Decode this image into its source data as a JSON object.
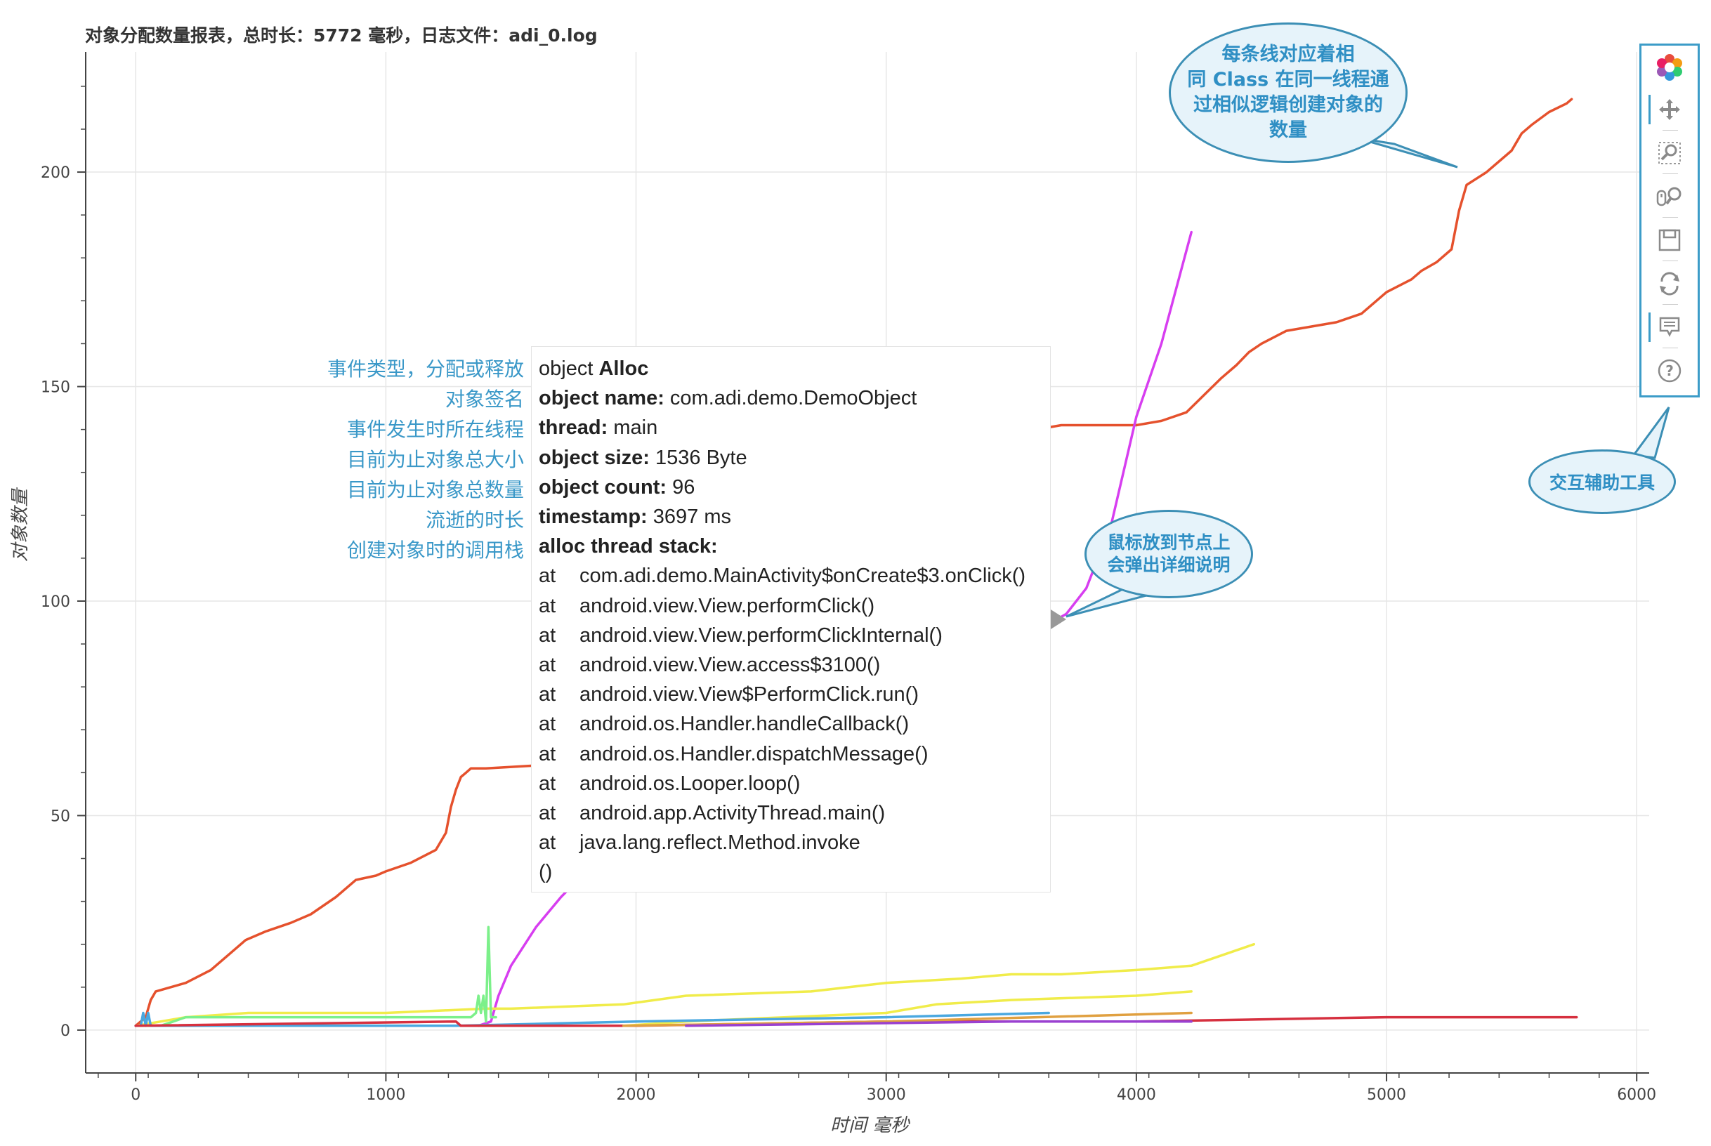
{
  "page": {
    "title": "对象分配数量报表，总时长：5772 毫秒，日志文件：adi_0.log"
  },
  "chart_data": {
    "type": "line",
    "title": "对象分配数量报表，总时长：5772 毫秒，日志文件：adi_0.log",
    "xlabel": "时间 毫秒",
    "ylabel": "对象数量",
    "xlim": [
      -200,
      6050
    ],
    "ylim": [
      -10,
      228
    ],
    "x_ticks": [
      0,
      1000,
      2000,
      3000,
      4000,
      5000,
      6000
    ],
    "y_ticks": [
      0,
      50,
      100,
      150,
      200
    ],
    "grid": true,
    "series": [
      {
        "color": "#e5512d",
        "x": [
          0,
          40,
          50,
          60,
          80,
          200,
          300,
          380,
          440,
          520,
          620,
          700,
          800,
          880,
          960,
          1000,
          1100,
          1200,
          1240,
          1260,
          1280,
          1300,
          1320,
          1340,
          1360,
          1380,
          1400,
          1700,
          2100,
          2500,
          2900,
          3200,
          3400,
          3500,
          3560,
          3600,
          3700,
          4000,
          4100,
          4200,
          4270,
          4340,
          4400,
          4450,
          4500,
          4600,
          4700,
          4800,
          4900,
          5000,
          5100,
          5140,
          5200,
          5260,
          5290,
          5320,
          5400,
          5500,
          5540,
          5580,
          5650,
          5720,
          5740
        ],
        "y": [
          1,
          3,
          5,
          7,
          9,
          11,
          14,
          18,
          21,
          23,
          25,
          27,
          31,
          35,
          36,
          37,
          39,
          42,
          46,
          52,
          56,
          59,
          60,
          61,
          61,
          61,
          61,
          62,
          80,
          98,
          112,
          125,
          131,
          136,
          138,
          140,
          141,
          141,
          142,
          144,
          148,
          152,
          155,
          158,
          160,
          163,
          164,
          165,
          167,
          172,
          175,
          177,
          179,
          182,
          191,
          197,
          200,
          205,
          209,
          211,
          214,
          216,
          217
        ]
      },
      {
        "color": "#d73ef0",
        "x": [
          1370,
          1420,
          1450,
          1500,
          1600,
          1700,
          1800,
          1900,
          2000,
          2100,
          2200,
          2300,
          2400,
          2500,
          2600,
          2700,
          2800,
          2900,
          3000,
          3100,
          3200,
          3300,
          3400,
          3500,
          3600,
          3690,
          3720,
          3800,
          3900,
          4000,
          4100,
          4220
        ],
        "y": [
          1,
          2,
          8,
          15,
          24,
          31,
          37,
          42,
          47,
          52,
          56,
          60,
          64,
          68,
          71,
          74,
          77,
          80,
          82,
          84,
          87,
          89,
          91,
          93,
          95,
          96,
          97,
          103,
          118,
          143,
          160,
          186
        ]
      },
      {
        "color": "#f0ec4a",
        "x": [
          0,
          200,
          450,
          700,
          1000,
          1400,
          1500,
          1950,
          2200,
          2700,
          3000,
          3300,
          3500,
          3700,
          4000,
          4220,
          4470
        ],
        "y": [
          1,
          3,
          4,
          4,
          4,
          5,
          5,
          6,
          8,
          9,
          11,
          12,
          13,
          13,
          14,
          15,
          20
        ]
      },
      {
        "color": "#f0ec4a",
        "x": [
          1950,
          2200,
          2600,
          3000,
          3200,
          3500,
          4000,
          4220
        ],
        "y": [
          1,
          2,
          3,
          4,
          6,
          7,
          8,
          9
        ]
      },
      {
        "color": "#7cf08a",
        "x": [
          0,
          100,
          200,
          500,
          1000,
          1320,
          1340,
          1360,
          1370,
          1380,
          1390,
          1400,
          1410,
          1420,
          1430,
          1440
        ],
        "y": [
          1,
          1,
          3,
          3,
          3,
          3,
          3,
          4,
          8,
          4,
          8,
          2,
          24,
          3,
          3,
          3
        ]
      },
      {
        "color": "#4aa8e0",
        "x": [
          0,
          20,
          30,
          40,
          50,
          60,
          1280,
          2000,
          3000,
          3650
        ],
        "y": [
          1,
          1,
          4,
          1,
          4,
          1,
          1,
          2,
          3,
          4
        ]
      },
      {
        "color": "#d6303f",
        "x": [
          0,
          1280,
          1300,
          2000,
          3000,
          4000,
          5000,
          5760
        ],
        "y": [
          1,
          2,
          1,
          1,
          2,
          2,
          3,
          3
        ]
      },
      {
        "color": "#e0a040",
        "x": [
          1950,
          3000,
          4220
        ],
        "y": [
          1,
          2,
          4
        ]
      },
      {
        "color": "#9a40d0",
        "x": [
          2200,
          3500,
          4220
        ],
        "y": [
          1,
          2,
          2
        ]
      }
    ]
  },
  "tooltip": {
    "event_prefix": "object ",
    "event_type": "Alloc",
    "name_label": "object name:",
    "name_value": " com.adi.demo.DemoObject",
    "thread_label": "thread:",
    "thread_value": " main",
    "size_label": "object size:",
    "size_value": " 1536 Byte",
    "count_label": "object count:",
    "count_value": " 96",
    "timestamp_label": "timestamp:",
    "timestamp_value": " 3697 ms",
    "stack_label": "alloc thread stack:",
    "stack": [
      "com.adi.demo.MainActivity$onCreate$3.onClick()",
      "android.view.View.performClick()",
      "android.view.View.performClickInternal()",
      "android.view.View.access$3100()",
      "android.view.View$PerformClick.run()",
      "android.os.Handler.handleCallback()",
      "android.os.Handler.dispatchMessage()",
      "android.os.Looper.loop()",
      "android.app.ActivityThread.main()",
      "java.lang.reflect.Method.invoke"
    ],
    "at": "at",
    "stack_tail": "()"
  },
  "annotations": [
    "事件类型，分配或释放",
    "对象签名",
    "事件发生时所在线程",
    "目前为止对象总大小",
    "目前为止对象总数量",
    "流逝的时长",
    "创建对象时的调用栈"
  ],
  "callouts": {
    "lines": [
      "每条线对应着相",
      "同 Class 在同一线程通",
      "过相似逻辑创建对象的",
      "数量"
    ],
    "hover": [
      "鼠标放到节点上",
      "会弹出详细说明"
    ],
    "tools": "交互辅助工具"
  },
  "toolbar": {
    "tools": [
      "bokeh-logo-icon",
      "pan-icon",
      "box-zoom-icon",
      "wheel-zoom-icon",
      "save-icon",
      "reset-icon",
      "hover-icon",
      "help-icon"
    ]
  },
  "colors": {
    "accent": "#3a98c8",
    "callout_border": "#3c8fb5",
    "callout_fill": "#e6f3fa"
  }
}
